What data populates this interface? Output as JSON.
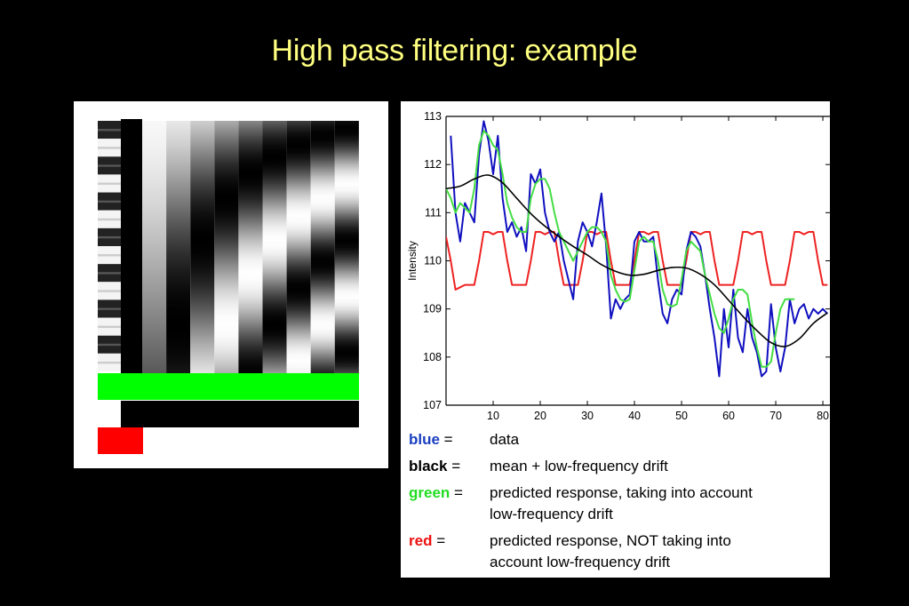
{
  "slide": {
    "title": "High pass filtering: example"
  },
  "design_matrix": {
    "colors": {
      "constant": "#00ff00",
      "block": "#000000",
      "marker": "#ff0000"
    },
    "block_rows": 14,
    "cosine_columns": 9
  },
  "chart_data": {
    "type": "line",
    "ylabel": "Intensity",
    "xlabel": "",
    "xlim": [
      0,
      81.5
    ],
    "ylim": [
      107,
      113
    ],
    "xticks": [
      10,
      20,
      30,
      40,
      50,
      60,
      70,
      80
    ],
    "yticks": [
      107,
      108,
      109,
      110,
      111,
      112,
      113
    ],
    "series": [
      {
        "name": "blue",
        "color": "#1010c0",
        "values": [
          [
            1,
            112.6
          ],
          [
            2,
            111.0
          ],
          [
            3,
            110.4
          ],
          [
            4,
            111.2
          ],
          [
            5,
            111.0
          ],
          [
            6,
            110.8
          ],
          [
            7,
            112.2
          ],
          [
            8,
            112.9
          ],
          [
            9,
            112.5
          ],
          [
            10,
            111.8
          ],
          [
            11,
            112.6
          ],
          [
            12,
            111.3
          ],
          [
            13,
            110.6
          ],
          [
            14,
            110.8
          ],
          [
            15,
            110.5
          ],
          [
            16,
            110.7
          ],
          [
            17,
            110.2
          ],
          [
            18,
            111.8
          ],
          [
            19,
            111.6
          ],
          [
            20,
            111.9
          ],
          [
            21,
            111.0
          ],
          [
            22,
            110.6
          ],
          [
            23,
            110.4
          ],
          [
            24,
            110.6
          ],
          [
            25,
            110.0
          ],
          [
            26,
            109.6
          ],
          [
            27,
            109.2
          ],
          [
            28,
            110.4
          ],
          [
            29,
            110.8
          ],
          [
            30,
            110.6
          ],
          [
            31,
            110.3
          ],
          [
            32,
            110.8
          ],
          [
            33,
            111.4
          ],
          [
            34,
            110.3
          ],
          [
            35,
            108.8
          ],
          [
            36,
            109.2
          ],
          [
            37,
            109.0
          ],
          [
            38,
            109.2
          ],
          [
            39,
            109.3
          ],
          [
            40,
            110.4
          ],
          [
            41,
            110.6
          ],
          [
            42,
            110.4
          ],
          [
            43,
            110.4
          ],
          [
            44,
            110.5
          ],
          [
            45,
            109.6
          ],
          [
            46,
            108.9
          ],
          [
            47,
            108.7
          ],
          [
            48,
            109.2
          ],
          [
            49,
            109.4
          ],
          [
            50,
            109.3
          ],
          [
            51,
            110.2
          ],
          [
            52,
            110.6
          ],
          [
            53,
            110.5
          ],
          [
            54,
            110.3
          ],
          [
            55,
            109.7
          ],
          [
            56,
            109.0
          ],
          [
            57,
            108.4
          ],
          [
            58,
            107.6
          ],
          [
            59,
            109.0
          ],
          [
            60,
            108.2
          ],
          [
            61,
            109.4
          ],
          [
            62,
            108.4
          ],
          [
            63,
            108.1
          ],
          [
            64,
            109.0
          ],
          [
            65,
            108.4
          ],
          [
            66,
            108.1
          ],
          [
            67,
            107.6
          ],
          [
            68,
            107.7
          ],
          [
            69,
            109.1
          ],
          [
            70,
            108.2
          ],
          [
            71,
            107.7
          ],
          [
            72,
            108.2
          ],
          [
            73,
            109.2
          ],
          [
            74,
            108.7
          ],
          [
            75,
            109.0
          ],
          [
            76,
            109.1
          ],
          [
            77,
            108.8
          ],
          [
            78,
            109.0
          ],
          [
            79,
            108.9
          ],
          [
            80,
            109.0
          ],
          [
            81,
            108.9
          ]
        ]
      },
      {
        "name": "black",
        "color": "#000000",
        "values": [
          [
            0,
            111.5
          ],
          [
            3,
            111.55
          ],
          [
            6,
            111.7
          ],
          [
            9,
            111.78
          ],
          [
            12,
            111.62
          ],
          [
            15,
            111.3
          ],
          [
            18,
            110.98
          ],
          [
            21,
            110.72
          ],
          [
            24,
            110.5
          ],
          [
            27,
            110.3
          ],
          [
            30,
            110.12
          ],
          [
            33,
            109.92
          ],
          [
            36,
            109.78
          ],
          [
            39,
            109.7
          ],
          [
            42,
            109.72
          ],
          [
            45,
            109.8
          ],
          [
            48,
            109.86
          ],
          [
            51,
            109.85
          ],
          [
            54,
            109.72
          ],
          [
            57,
            109.5
          ],
          [
            60,
            109.18
          ],
          [
            63,
            108.85
          ],
          [
            66,
            108.55
          ],
          [
            69,
            108.3
          ],
          [
            72,
            108.22
          ],
          [
            75,
            108.38
          ],
          [
            78,
            108.7
          ],
          [
            81,
            108.92
          ]
        ]
      },
      {
        "name": "green",
        "color": "#44dd44",
        "values": [
          [
            0,
            111.5
          ],
          [
            1,
            111.3
          ],
          [
            2,
            111.0
          ],
          [
            3,
            111.2
          ],
          [
            4,
            111.1
          ],
          [
            5,
            111.0
          ],
          [
            6,
            111.5
          ],
          [
            7,
            112.4
          ],
          [
            8,
            112.7
          ],
          [
            9,
            112.6
          ],
          [
            10,
            112.4
          ],
          [
            11,
            112.3
          ],
          [
            12,
            111.8
          ],
          [
            13,
            111.2
          ],
          [
            14,
            110.9
          ],
          [
            15,
            110.7
          ],
          [
            16,
            110.6
          ],
          [
            17,
            110.6
          ],
          [
            18,
            111.3
          ],
          [
            19,
            111.6
          ],
          [
            20,
            111.7
          ],
          [
            21,
            111.7
          ],
          [
            22,
            111.5
          ],
          [
            23,
            111.0
          ],
          [
            24,
            110.6
          ],
          [
            25,
            110.4
          ],
          [
            26,
            110.2
          ],
          [
            27,
            110.0
          ],
          [
            28,
            110.2
          ],
          [
            29,
            110.4
          ],
          [
            30,
            110.6
          ],
          [
            31,
            110.7
          ],
          [
            32,
            110.7
          ],
          [
            33,
            110.6
          ],
          [
            34,
            110.4
          ],
          [
            35,
            109.7
          ],
          [
            36,
            109.4
          ],
          [
            37,
            109.2
          ],
          [
            38,
            109.15
          ],
          [
            39,
            109.2
          ],
          [
            40,
            109.8
          ],
          [
            41,
            110.4
          ],
          [
            42,
            110.5
          ],
          [
            43,
            110.4
          ],
          [
            44,
            110.4
          ],
          [
            45,
            110.0
          ],
          [
            46,
            109.4
          ],
          [
            47,
            109.1
          ],
          [
            48,
            109.05
          ],
          [
            49,
            109.1
          ],
          [
            50,
            109.6
          ],
          [
            51,
            110.2
          ],
          [
            52,
            110.4
          ],
          [
            53,
            110.3
          ],
          [
            54,
            110.2
          ],
          [
            55,
            109.7
          ],
          [
            56,
            109.3
          ],
          [
            57,
            108.9
          ],
          [
            58,
            108.6
          ],
          [
            59,
            108.5
          ],
          [
            60,
            108.8
          ],
          [
            61,
            109.2
          ],
          [
            62,
            109.4
          ],
          [
            63,
            109.4
          ],
          [
            64,
            109.3
          ],
          [
            65,
            108.7
          ],
          [
            66,
            108.2
          ],
          [
            67,
            107.8
          ],
          [
            68,
            107.8
          ],
          [
            69,
            107.9
          ],
          [
            70,
            108.5
          ],
          [
            71,
            109.0
          ],
          [
            72,
            109.2
          ],
          [
            73,
            109.2
          ],
          [
            74,
            109.2
          ]
        ]
      },
      {
        "name": "red",
        "color": "#ee2222",
        "values": [
          [
            0,
            110.5
          ],
          [
            1,
            110.0
          ],
          [
            2,
            109.4
          ],
          [
            3,
            109.45
          ],
          [
            4,
            109.5
          ],
          [
            5,
            109.5
          ],
          [
            6,
            109.5
          ],
          [
            7,
            110.0
          ],
          [
            8,
            110.6
          ],
          [
            9,
            110.6
          ],
          [
            10,
            110.55
          ],
          [
            11,
            110.6
          ],
          [
            12,
            110.6
          ],
          [
            13,
            110.0
          ],
          [
            14,
            109.5
          ],
          [
            15,
            109.5
          ],
          [
            16,
            109.5
          ],
          [
            17,
            109.5
          ],
          [
            18,
            110.0
          ],
          [
            19,
            110.6
          ],
          [
            20,
            110.6
          ],
          [
            21,
            110.55
          ],
          [
            22,
            110.6
          ],
          [
            23,
            110.6
          ],
          [
            24,
            110.0
          ],
          [
            25,
            109.5
          ],
          [
            26,
            109.5
          ],
          [
            27,
            109.5
          ],
          [
            28,
            109.5
          ],
          [
            29,
            110.0
          ],
          [
            30,
            110.6
          ],
          [
            31,
            110.6
          ],
          [
            32,
            110.55
          ],
          [
            33,
            110.6
          ],
          [
            34,
            110.6
          ],
          [
            35,
            110.0
          ],
          [
            36,
            109.5
          ],
          [
            37,
            109.5
          ],
          [
            38,
            109.5
          ],
          [
            39,
            109.5
          ],
          [
            40,
            110.0
          ],
          [
            41,
            110.6
          ],
          [
            42,
            110.6
          ],
          [
            43,
            110.55
          ],
          [
            44,
            110.6
          ],
          [
            45,
            110.6
          ],
          [
            46,
            110.0
          ],
          [
            47,
            109.5
          ],
          [
            48,
            109.5
          ],
          [
            49,
            109.5
          ],
          [
            50,
            109.5
          ],
          [
            51,
            110.0
          ],
          [
            52,
            110.6
          ],
          [
            53,
            110.6
          ],
          [
            54,
            110.55
          ],
          [
            55,
            110.6
          ],
          [
            56,
            110.6
          ],
          [
            57,
            110.0
          ],
          [
            58,
            109.5
          ],
          [
            59,
            109.5
          ],
          [
            60,
            109.5
          ],
          [
            61,
            109.5
          ],
          [
            62,
            110.0
          ],
          [
            63,
            110.6
          ],
          [
            64,
            110.6
          ],
          [
            65,
            110.55
          ],
          [
            66,
            110.6
          ],
          [
            67,
            110.6
          ],
          [
            68,
            110.0
          ],
          [
            69,
            109.5
          ],
          [
            70,
            109.5
          ],
          [
            71,
            109.5
          ],
          [
            72,
            109.5
          ],
          [
            73,
            110.0
          ],
          [
            74,
            110.6
          ],
          [
            75,
            110.6
          ],
          [
            76,
            110.55
          ],
          [
            77,
            110.6
          ],
          [
            78,
            110.6
          ],
          [
            79,
            110.0
          ],
          [
            80,
            109.5
          ],
          [
            81,
            109.5
          ]
        ]
      }
    ]
  },
  "legend": [
    {
      "key": "blue",
      "sep": " =",
      "color": "#1a3fbf",
      "desc_lines": [
        "data"
      ]
    },
    {
      "key": "black",
      "sep": " =",
      "color": "#000000",
      "desc_lines": [
        "mean + low-frequency drift"
      ]
    },
    {
      "key": "green",
      "sep": " =",
      "color": "#22dd22",
      "desc_lines": [
        "predicted response, taking into account",
        "low-frequency drift"
      ]
    },
    {
      "key": "red",
      "sep": " =",
      "color": "#ee1111",
      "desc_lines": [
        "predicted response, NOT taking into",
        "account low-frequency drift"
      ]
    }
  ]
}
